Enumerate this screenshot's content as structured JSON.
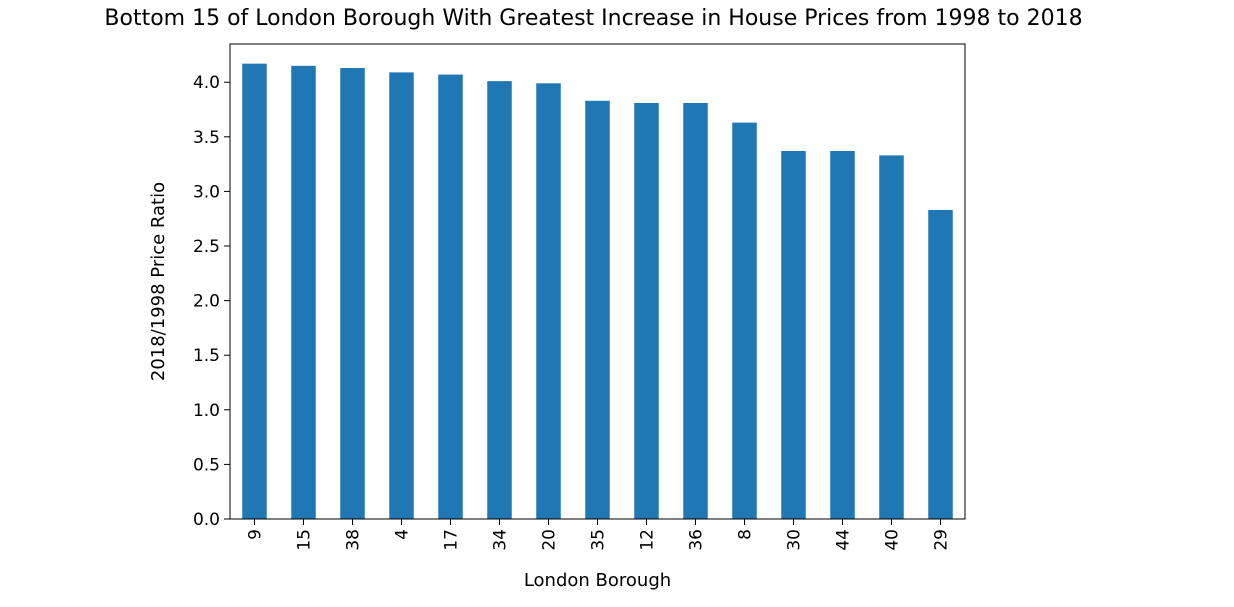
{
  "chart_data": {
    "type": "bar",
    "title": "Bottom 15 of London Borough With Greatest Increase in House Prices from 1998 to 2018",
    "xlabel": "London Borough",
    "ylabel": "2018/1998 Price Ratio",
    "categories": [
      "9",
      "15",
      "38",
      "4",
      "17",
      "34",
      "20",
      "35",
      "12",
      "36",
      "8",
      "30",
      "44",
      "40",
      "29"
    ],
    "values": [
      4.17,
      4.15,
      4.13,
      4.09,
      4.07,
      4.01,
      3.99,
      3.83,
      3.81,
      3.81,
      3.63,
      3.37,
      3.37,
      3.33,
      2.83
    ],
    "ylim": [
      0,
      4.35
    ],
    "yticks": [
      "0.0",
      "0.5",
      "1.0",
      "1.5",
      "2.0",
      "2.5",
      "3.0",
      "3.5",
      "4.0"
    ],
    "bar_color": "#1f77b4",
    "grid": false,
    "legend": "none"
  }
}
